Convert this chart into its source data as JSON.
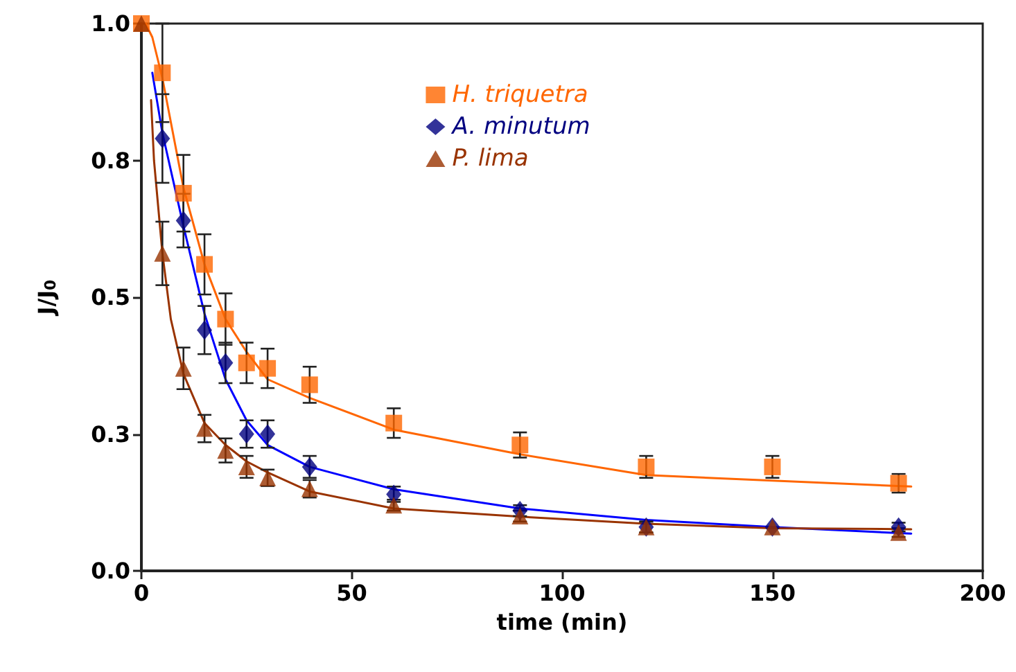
{
  "chart_data": {
    "type": "scatter",
    "xlabel": "time (min)",
    "ylabel": "J/J$_{0}$",
    "xlim": [
      0,
      200
    ],
    "xticks": [
      0,
      50,
      100,
      150,
      200
    ],
    "ylim": [
      0,
      1
    ],
    "yticks": [
      {
        "value": 0,
        "label": "0.0"
      },
      {
        "value": 0.25,
        "label": "0.3"
      },
      {
        "value": 0.5,
        "label": "0.5"
      },
      {
        "value": 0.75,
        "label": "0.8"
      },
      {
        "value": 1,
        "label": "1.0"
      }
    ],
    "grid": false,
    "legend": "top",
    "series": [
      {
        "name": "H. triquetra",
        "color": "#ff6600",
        "marker": "square",
        "x": [
          0,
          5,
          10,
          15,
          20,
          25,
          30,
          40,
          60,
          90,
          120,
          150,
          180
        ],
        "values": [
          1.0,
          0.91,
          0.69,
          0.56,
          0.46,
          0.38,
          0.37,
          0.34,
          0.27,
          0.23,
          0.19,
          0.19,
          0.16
        ],
        "errors": [
          null,
          0.09,
          0.07,
          0.055,
          0.047,
          0.037,
          0.036,
          0.033,
          0.027,
          0.023,
          0.02,
          0.02,
          0.017
        ]
      },
      {
        "name": "A. minutum",
        "color": "#000080",
        "marker": "diamond",
        "x": [
          5,
          10,
          15,
          20,
          25,
          30,
          40,
          60,
          90,
          120,
          150,
          180
        ],
        "values": [
          0.79,
          0.64,
          0.44,
          0.38,
          0.25,
          0.25,
          0.19,
          0.14,
          0.11,
          0.08,
          0.08,
          0.08
        ],
        "errors": [
          0.081,
          0.049,
          0.044,
          0.037,
          0.025,
          0.025,
          0.02,
          0.014,
          0.01,
          0.01,
          null,
          0.008
        ]
      },
      {
        "name": "P. lima",
        "color": "#993300",
        "marker": "triangle",
        "x": [
          0,
          5,
          10,
          15,
          20,
          25,
          30,
          40,
          60,
          90,
          120,
          150,
          180
        ],
        "values": [
          1.0,
          0.58,
          0.37,
          0.26,
          0.22,
          0.19,
          0.17,
          0.15,
          0.12,
          0.1,
          0.08,
          0.08,
          0.07
        ],
        "errors": [
          null,
          0.058,
          0.038,
          0.025,
          0.022,
          0.02,
          0.015,
          0.016,
          0.01,
          0.01,
          0.01,
          null,
          0.008
        ]
      },
      {
        "type": "line",
        "color": "#ff6600",
        "marker": "none",
        "x": [
          1,
          2.6,
          5,
          10,
          15,
          20,
          25,
          30,
          40,
          60,
          90,
          120,
          150,
          183
        ],
        "values": [
          1.0,
          0.975,
          0.9,
          0.7,
          0.56,
          0.46,
          0.4,
          0.35,
          0.316,
          0.258,
          0.213,
          0.175,
          0.165,
          0.154
        ]
      },
      {
        "type": "line",
        "color": "#0000ff",
        "marker": "none",
        "x": [
          2.6,
          5,
          10,
          15,
          20,
          25,
          30,
          40,
          60,
          90,
          120,
          150,
          183
        ],
        "values": [
          0.91,
          0.8,
          0.63,
          0.47,
          0.35,
          0.275,
          0.23,
          0.19,
          0.149,
          0.114,
          0.093,
          0.08,
          0.068
        ]
      },
      {
        "type": "line",
        "color": "#993300",
        "marker": "none",
        "x": [
          2.3,
          3,
          5,
          7,
          10,
          15,
          20,
          25,
          30,
          40,
          60,
          90,
          120,
          150,
          183
        ],
        "values": [
          0.86,
          0.75,
          0.58,
          0.46,
          0.36,
          0.27,
          0.23,
          0.2,
          0.18,
          0.145,
          0.114,
          0.099,
          0.086,
          0.078,
          0.076
        ]
      }
    ]
  }
}
